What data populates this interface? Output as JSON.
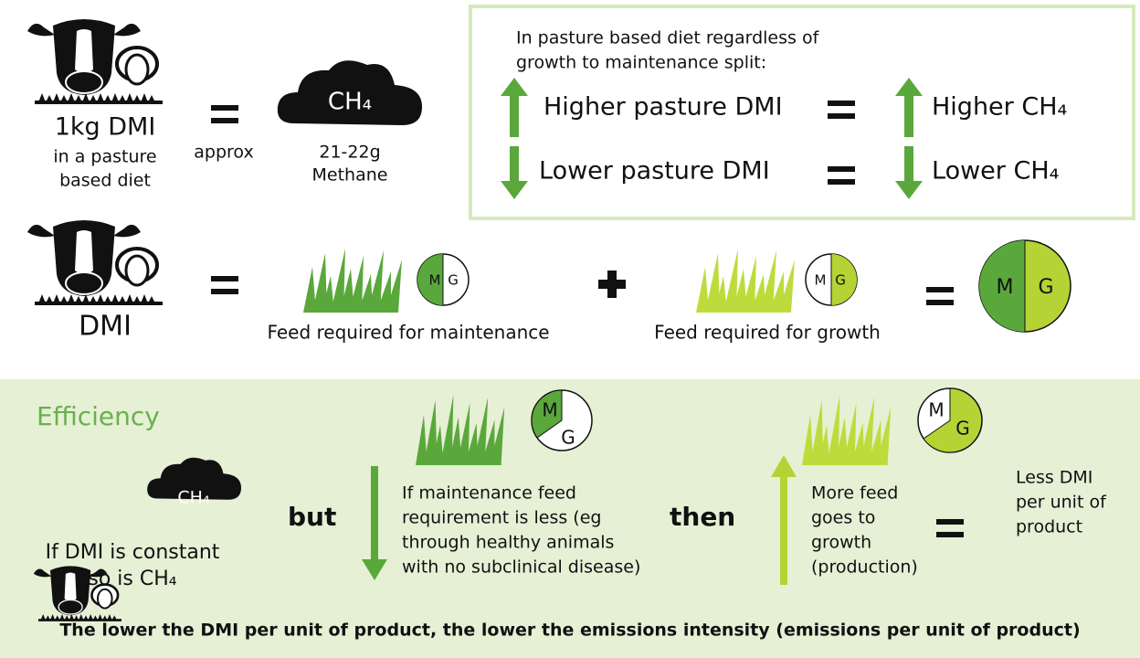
{
  "top": {
    "dmi_label": "1kg DMI",
    "dmi_sub": [
      "in a pasture",
      "based diet"
    ],
    "approx": "approx",
    "ch4": "CH₄",
    "methane": [
      "21-22g",
      "Methane"
    ]
  },
  "box": {
    "intro": [
      "In pasture based diet regardless of",
      "growth to maintenance split:"
    ],
    "rows": [
      {
        "left": "Higher pasture DMI",
        "right": "Higher CH₄"
      },
      {
        "left": "Lower pasture DMI",
        "right": "Lower CH₄"
      }
    ]
  },
  "middle": {
    "dmi": "DMI",
    "maintenance": "Feed required for maintenance",
    "growth": "Feed required for growth",
    "m": "M",
    "g": "G"
  },
  "efficiency": {
    "title": "Efficiency",
    "ch4": "CH₄",
    "constant": [
      "If DMI is constant",
      "so is CH₄"
    ],
    "but": "but",
    "maintenance_text": [
      "If maintenance feed",
      "requirement is less (eg",
      "through healthy animals",
      "with no subclinical disease)"
    ],
    "then": "then",
    "growth_text": [
      "More feed",
      "goes to",
      "growth",
      "(production)"
    ],
    "result": [
      "Less DMI",
      "per unit of",
      "product"
    ],
    "footer": "The lower the DMI per unit of product, the lower the emissions intensity (emissions per unit of product)"
  }
}
